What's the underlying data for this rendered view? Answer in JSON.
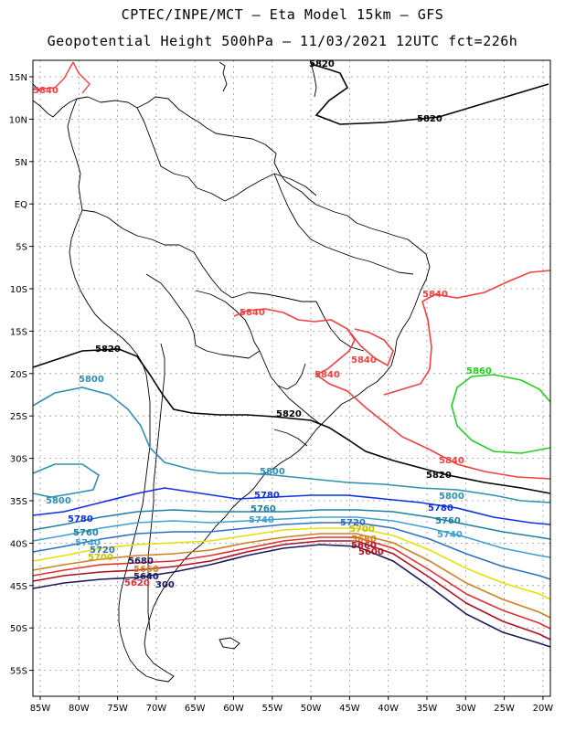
{
  "title": {
    "line1": "CPTEC/INPE/MCT –  Eta Model 15km – GFS",
    "line2": "Geopotential Height 500hPa – 11/03/2021 12UTC fct=226h"
  },
  "axes": {
    "lat_ticks": [
      "15N",
      "10N",
      "5N",
      "EQ",
      "5S",
      "10S",
      "15S",
      "20S",
      "25S",
      "30S",
      "35S",
      "40S",
      "45S",
      "50S",
      "55S"
    ],
    "lon_ticks": [
      "85W",
      "80W",
      "75W",
      "70W",
      "65W",
      "60W",
      "55W",
      "50W",
      "45W",
      "40W",
      "35W",
      "30W",
      "25W",
      "20W"
    ]
  },
  "contours": [
    {
      "value": "5620",
      "color": "#1a1a5e"
    },
    {
      "value": "5640",
      "color": "#b01020"
    },
    {
      "value": "5660",
      "color": "#e03030"
    },
    {
      "value": "5680",
      "color": "#d08020"
    },
    {
      "value": "5700",
      "color": "#e8e000"
    },
    {
      "value": "5720",
      "color": "#3070c0"
    },
    {
      "value": "5740",
      "color": "#40a0d0"
    },
    {
      "value": "5760",
      "color": "#2080a0"
    },
    {
      "value": "5780",
      "color": "#1030e0"
    },
    {
      "value": "5800",
      "color": "#3090b0"
    },
    {
      "value": "5820",
      "color": "#000000"
    },
    {
      "value": "5840",
      "color": "#f04040"
    },
    {
      "value": "5860",
      "color": "#20d020"
    }
  ],
  "labels": {
    "c5820_a": "5820",
    "c5820_b": "5820",
    "c5820_c": "5820",
    "c5820_d": "5820",
    "c5820_e": "5820",
    "c5840_a": "5840",
    "c5840_b": "5840",
    "c5840_c": "5840",
    "c5840_d": "5840",
    "c5840_e": "5840",
    "c5840_f": "5840",
    "c5860": "5860",
    "c5800_a": "5800",
    "c5800_b": "5800",
    "c5800_c": "5800",
    "c5800_d": "5800",
    "c5780_a": "5780",
    "c5780_b": "5780",
    "c5780_c": "5780",
    "c5760_a": "5760",
    "c5760_b": "5760",
    "c5760_c": "5760",
    "c5740_a": "5740",
    "c5740_b": "5740",
    "c5740_c": "5740",
    "c5720_a": "5720",
    "c5720_b": "5720",
    "c5700_a": "5700",
    "c5700_b": "5700",
    "c5680_a": "5680",
    "c5680_b": "5680",
    "c5660_a": "5660",
    "c5660_b": "5660",
    "c5640": "5640",
    "c5620": "5620",
    "c5600": "5600",
    "c300": "300"
  }
}
